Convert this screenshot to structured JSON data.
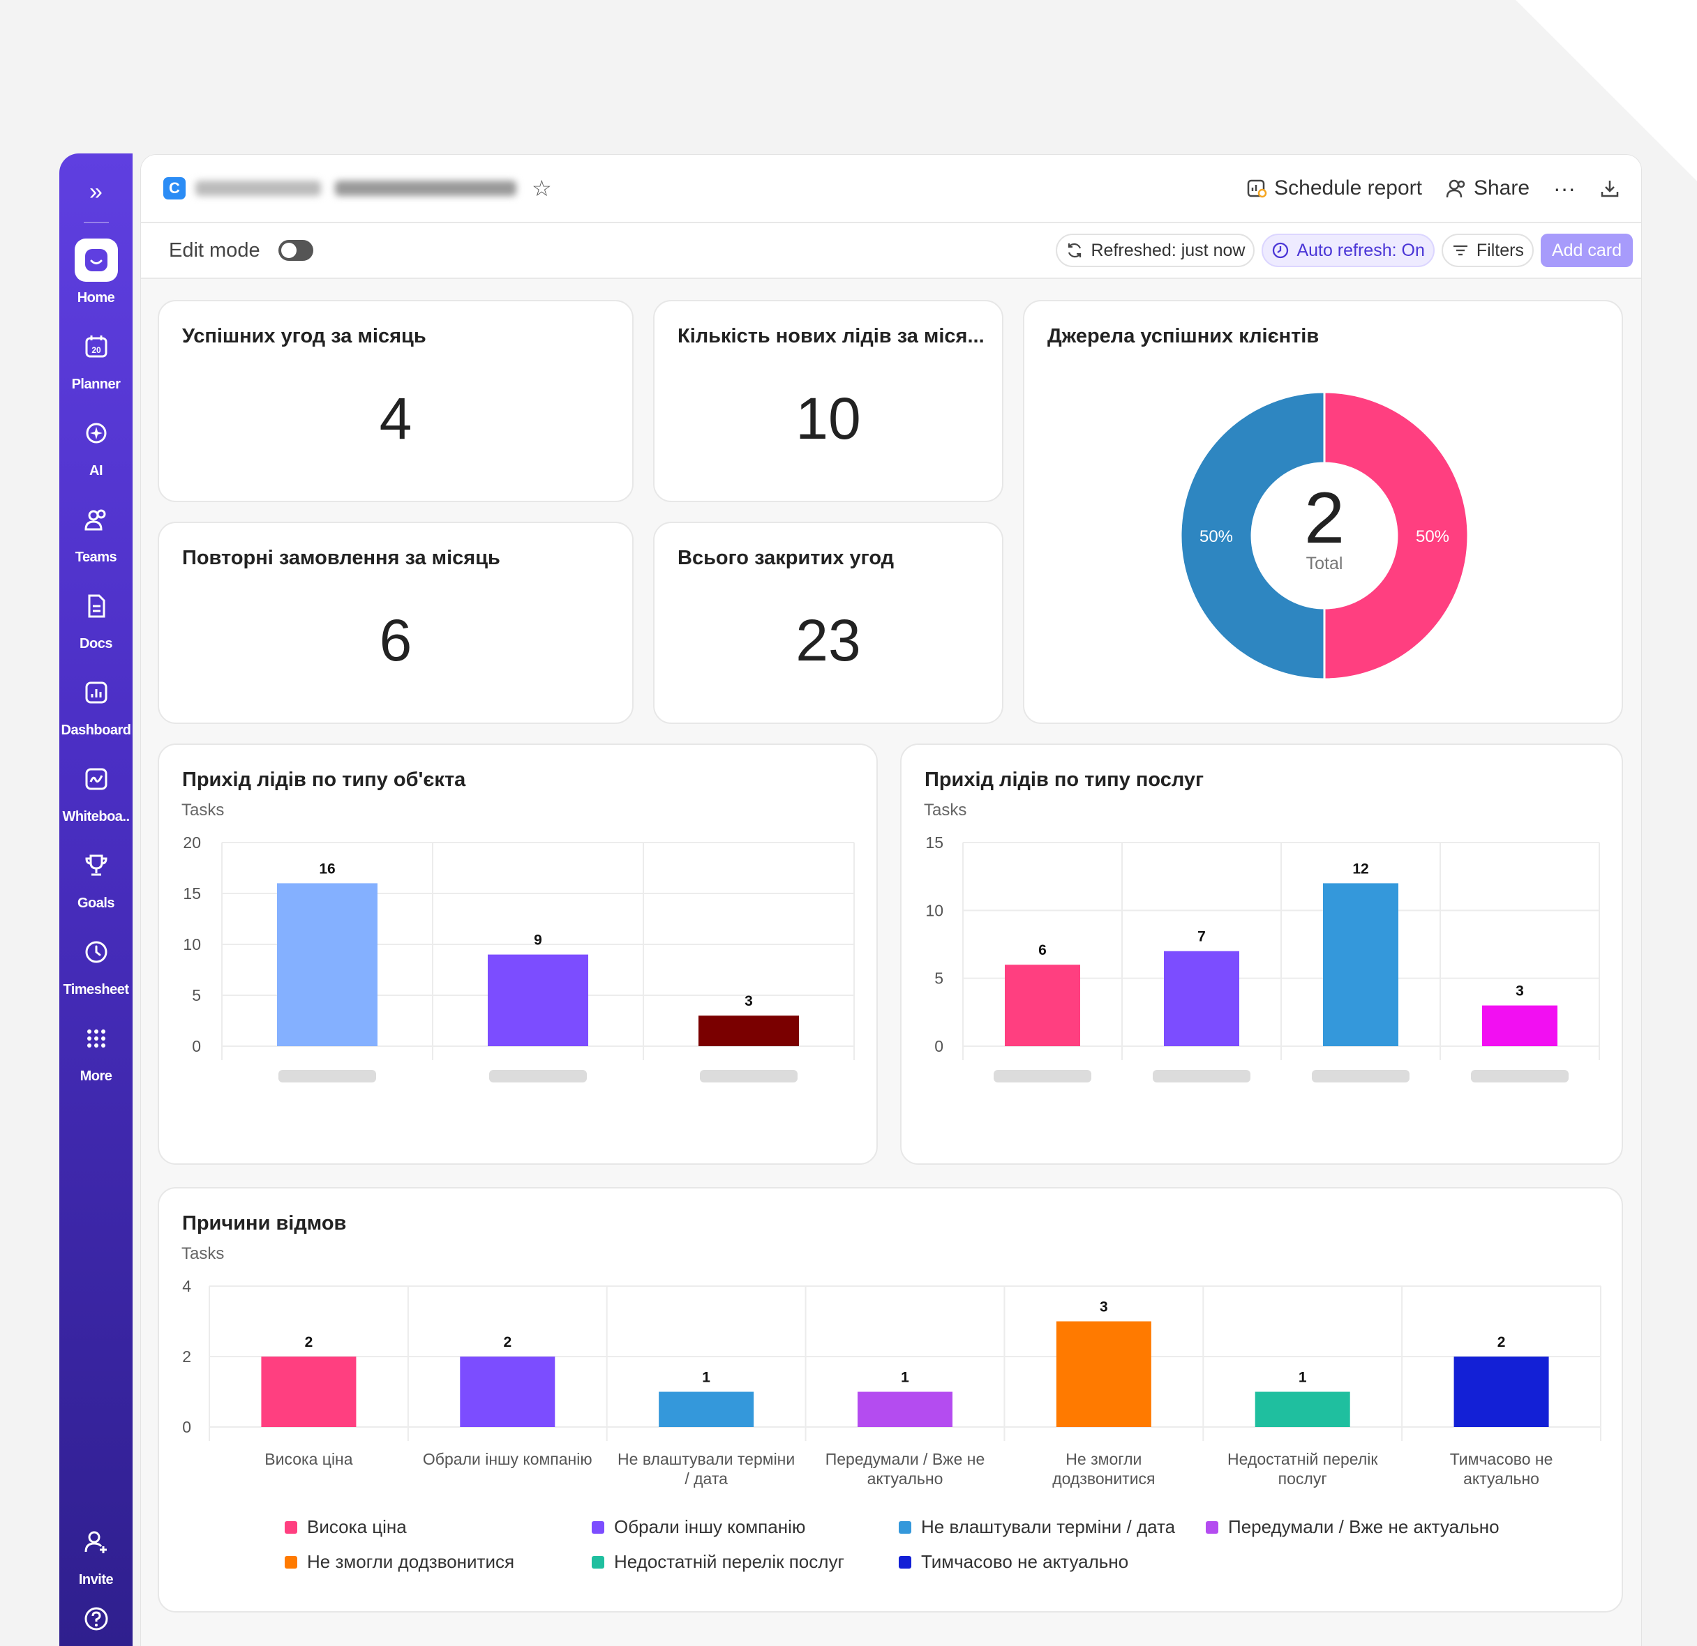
{
  "window": {
    "workspace_badge": "C",
    "schedule_report": "Schedule report",
    "share": "Share",
    "more": "···"
  },
  "sidebar": {
    "items": [
      {
        "label": "Home",
        "icon": "home-icon"
      },
      {
        "label": "Planner",
        "icon": "calendar-icon"
      },
      {
        "label": "AI",
        "icon": "ai-icon"
      },
      {
        "label": "Teams",
        "icon": "teams-icon"
      },
      {
        "label": "Docs",
        "icon": "docs-icon"
      },
      {
        "label": "Dashboard",
        "icon": "dashboard-icon"
      },
      {
        "label": "Whiteboa..",
        "icon": "whiteboard-icon"
      },
      {
        "label": "Goals",
        "icon": "trophy-icon"
      },
      {
        "label": "Timesheet",
        "icon": "clock-icon"
      },
      {
        "label": "More",
        "icon": "grid-icon"
      }
    ],
    "invite": "Invite"
  },
  "toolbar": {
    "edit_mode": "Edit mode",
    "refreshed": "Refreshed: just now",
    "auto_refresh": "Auto refresh: On",
    "filters": "Filters",
    "add_card": "Add card"
  },
  "kpis": [
    {
      "title": "Успішних угод за місяць",
      "value": "4"
    },
    {
      "title": "Кількість нових лідів за міся...",
      "value": "10"
    },
    {
      "title": "Повторні замовлення за місяць",
      "value": "6"
    },
    {
      "title": "Всього закритих угод",
      "value": "23"
    }
  ],
  "donut": {
    "title": "Джерела успішних клієнтів",
    "total": "2",
    "total_label": "Total"
  },
  "bar1": {
    "title": "Прихід лідів по типу об'єкта",
    "sub": "Tasks"
  },
  "bar2": {
    "title": "Прихід лідів по типу послуг",
    "sub": "Tasks"
  },
  "bar3": {
    "title": "Причини відмов",
    "sub": "Tasks"
  },
  "chart_data": [
    {
      "type": "pie",
      "title": "Джерела успішних клієнтів",
      "slices": [
        {
          "value": 50,
          "label": "50%",
          "color": "#2e86c1"
        },
        {
          "value": 50,
          "label": "50%",
          "color": "#ff3f80"
        }
      ],
      "center_value": 2,
      "center_label": "Total"
    },
    {
      "type": "bar",
      "title": "Прихід лідів по типу об'єкта",
      "ylabel": "Tasks",
      "ylim": [
        0,
        20
      ],
      "yticks": [
        0,
        5,
        10,
        15,
        20
      ],
      "values": [
        16,
        9,
        3
      ],
      "colors": [
        "#84b0ff",
        "#7c4dff",
        "#7a0000"
      ],
      "grid": true
    },
    {
      "type": "bar",
      "title": "Прихід лідів по типу послуг",
      "ylabel": "Tasks",
      "ylim": [
        0,
        15
      ],
      "yticks": [
        0,
        5,
        10,
        15
      ],
      "values": [
        6,
        7,
        12,
        3
      ],
      "colors": [
        "#ff3f80",
        "#7c4dff",
        "#3498db",
        "#f20ff2"
      ],
      "grid": true
    },
    {
      "type": "bar",
      "title": "Причини відмов",
      "ylabel": "Tasks",
      "ylim": [
        0,
        4
      ],
      "yticks": [
        0,
        2,
        4
      ],
      "categories": [
        "Висока ціна",
        "Обрали іншу компанію",
        "Не влаштували терміни / дата",
        "Передумали / Вже не актуально",
        "Не змогли додзвонитися",
        "Недостатній перелік послуг",
        "Тимчасово не актуально"
      ],
      "category_lines": [
        [
          "Висока ціна"
        ],
        [
          "Обрали іншу компанію"
        ],
        [
          "Не влаштували терміни",
          "/ дата"
        ],
        [
          "Передумали / Вже не",
          "актуально"
        ],
        [
          "Не змогли",
          "додзвонитися"
        ],
        [
          "Недостатній перелік",
          "послуг"
        ],
        [
          "Тимчасово не",
          "актуально"
        ]
      ],
      "values": [
        2,
        2,
        1,
        1,
        3,
        1,
        2
      ],
      "colors": [
        "#ff3f80",
        "#7c4dff",
        "#3498db",
        "#b44cf0",
        "#ff7a00",
        "#1fbf9f",
        "#1320d6"
      ],
      "legend": "bottom",
      "grid": true
    }
  ]
}
